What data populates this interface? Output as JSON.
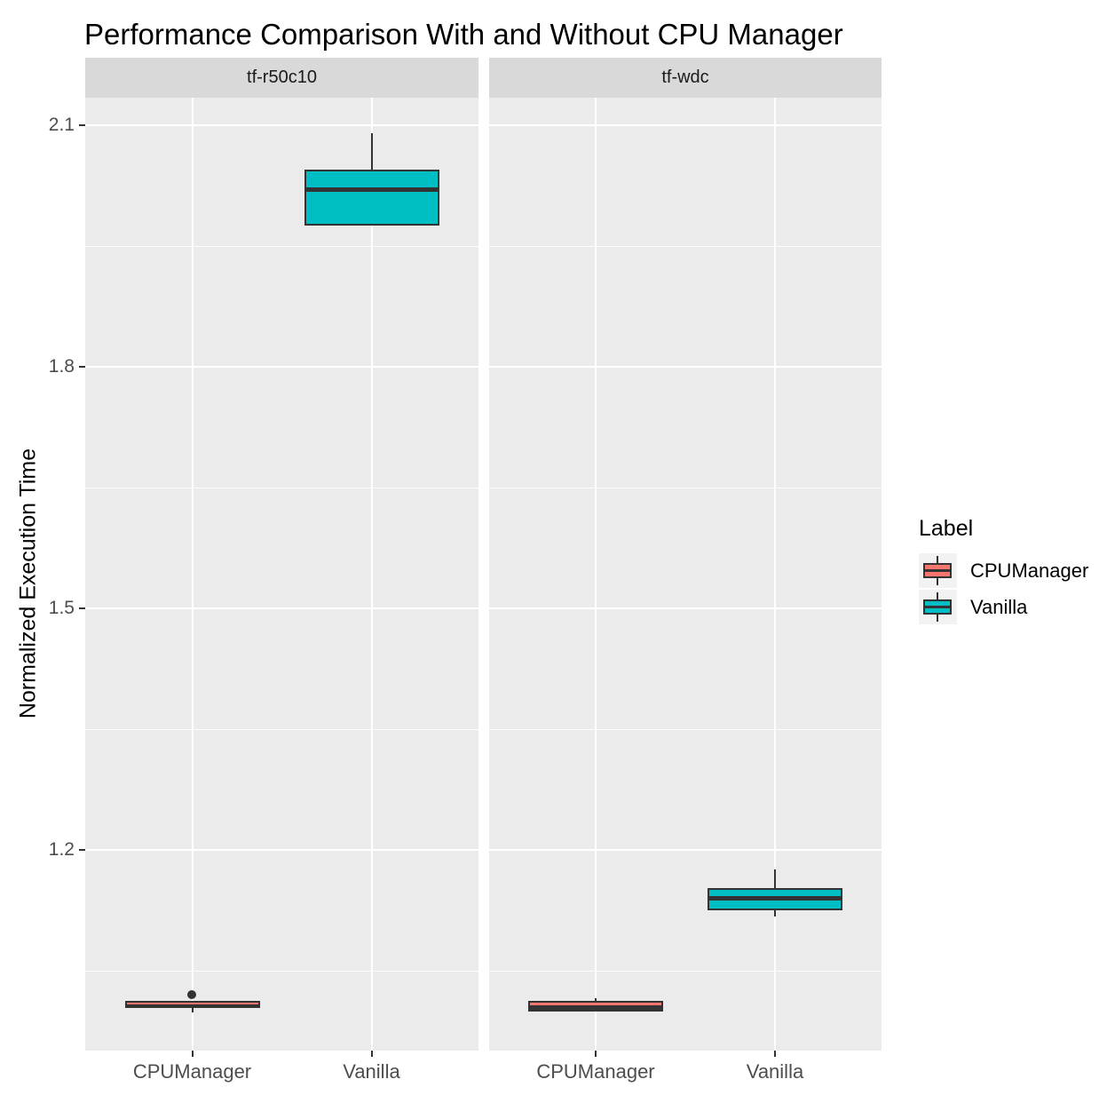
{
  "chart_data": {
    "type": "boxplot",
    "title": "Performance Comparison With and Without CPU Manager",
    "xlabel": "",
    "ylabel": "Normalized Execution Time",
    "x_categories": [
      "CPUManager",
      "Vanilla"
    ],
    "y_ticks": [
      1.2,
      1.5,
      1.8,
      2.1
    ],
    "y_minor_ticks": [
      1.05,
      1.35,
      1.65,
      1.95
    ],
    "ylim": [
      0.951,
      2.134
    ],
    "grid": {
      "major": "on",
      "minor": "on"
    },
    "legend": {
      "title": "Label",
      "position": "right",
      "entries": [
        {
          "label": "CPUManager",
          "color": "#F8766D"
        },
        {
          "label": "Vanilla",
          "color": "#00BFC4"
        }
      ]
    },
    "facets": [
      {
        "label": "tf-r50c10",
        "boxes": [
          {
            "category": "CPUManager",
            "series": "CPUManager",
            "color": "#F8766D",
            "whisker_low": 0.998,
            "q1": 1.004,
            "median": 1.007,
            "q3": 1.013,
            "whisker_high": 1.013,
            "outliers": [
              1.02
            ]
          },
          {
            "category": "Vanilla",
            "series": "Vanilla",
            "color": "#00BFC4",
            "whisker_low": 1.975,
            "q1": 1.975,
            "median": 2.02,
            "q3": 2.045,
            "whisker_high": 2.09,
            "outliers": []
          }
        ]
      },
      {
        "label": "tf-wdc",
        "boxes": [
          {
            "category": "CPUManager",
            "series": "CPUManager",
            "color": "#F8766D",
            "whisker_low": 1.0,
            "q1": 1.0,
            "median": 1.003,
            "q3": 1.013,
            "whisker_high": 1.016,
            "outliers": []
          },
          {
            "category": "Vanilla",
            "series": "Vanilla",
            "color": "#00BFC4",
            "whisker_low": 1.117,
            "q1": 1.125,
            "median": 1.14,
            "q3": 1.153,
            "whisker_high": 1.176,
            "outliers": []
          }
        ]
      }
    ],
    "style_colors": {
      "box_border": "#333333",
      "median": "#333333",
      "outlier": "#333333",
      "strip_bg": "#D9D9D9",
      "strip_text": "#1A1A1A",
      "panel_bg": "#EBEBEB",
      "gridline": "#FFFFFF",
      "axis_text": "#4D4D4D",
      "tick_mark": "#333333",
      "legend_key_bg": "#F2F2F2",
      "background": "#FFFFFF"
    }
  }
}
